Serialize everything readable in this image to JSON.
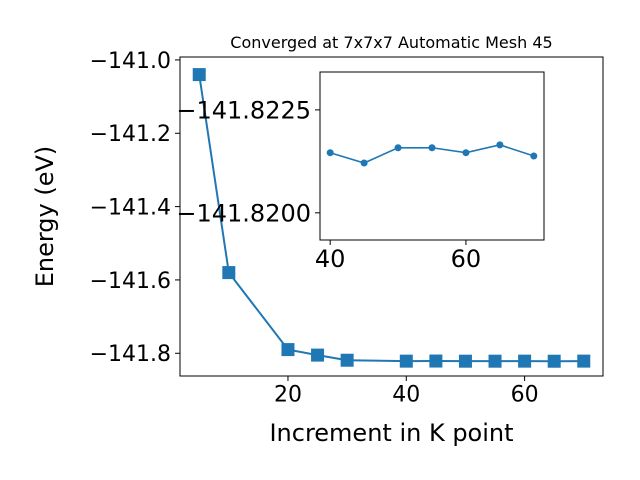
{
  "chart_data": [
    {
      "type": "line",
      "title": "Converged at 7x7x7 Automatic Mesh 45",
      "x_label": "Increment in K point",
      "y_label": "Energy (eV)",
      "x": [
        5,
        10,
        20,
        25,
        30,
        40,
        45,
        50,
        55,
        60,
        65,
        70
      ],
      "series": [
        {
          "color": "#1f77b4",
          "marker": "square",
          "values": [
            -141.04,
            -141.58,
            -141.79,
            -141.805,
            -141.819,
            -141.8215,
            -141.8212,
            -141.8216,
            -141.8216,
            -141.8215,
            -141.8217,
            -141.8214
          ]
        }
      ],
      "xlim": [
        1.75,
        73.25
      ],
      "ylim": [
        -141.862,
        -140.992
      ],
      "xticks": [
        20,
        40,
        60
      ],
      "yticks": [
        {
          "value": -141.0,
          "label": "−141.0"
        },
        {
          "value": -141.2,
          "label": "−141.2"
        },
        {
          "value": -141.4,
          "label": "−141.4"
        },
        {
          "value": -141.6,
          "label": "−141.6"
        },
        {
          "value": -141.8,
          "label": "−141.8"
        }
      ]
    },
    {
      "type": "line",
      "x": [
        40,
        45,
        50,
        55,
        60,
        65,
        70
      ],
      "series": [
        {
          "color": "#1f77b4",
          "marker": "circle",
          "values": [
            -141.82146,
            -141.82121,
            -141.82158,
            -141.82158,
            -141.82146,
            -141.82165,
            -141.82138
          ]
        }
      ],
      "xlim": [
        38.5,
        71.5
      ],
      "ylim": [
        -141.81934,
        -141.82342
      ],
      "xticks": [
        40,
        60
      ],
      "yticks": [
        {
          "value": -141.8225,
          "label": "−141.8225"
        },
        {
          "value": -141.82,
          "label": "−141.8200"
        }
      ]
    }
  ]
}
